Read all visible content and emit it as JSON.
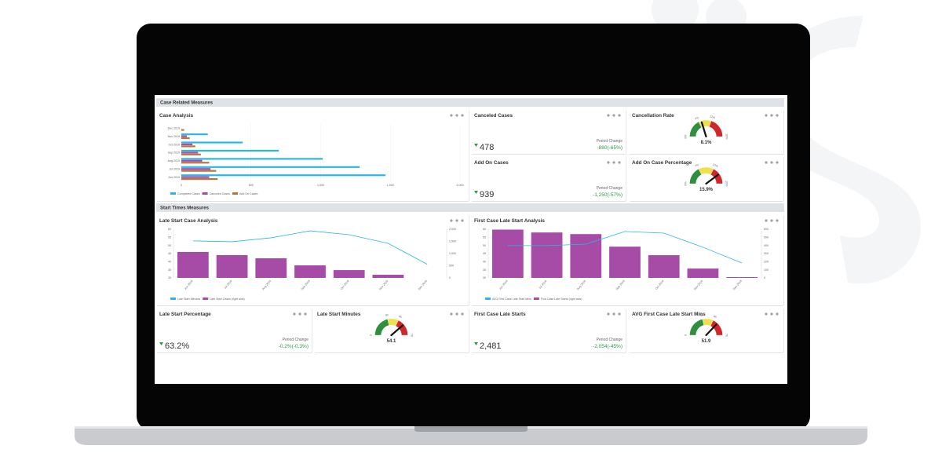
{
  "sections": [
    "Case Related Measures",
    "Start Times Measures"
  ],
  "chart_data": [
    {
      "type": "hbar",
      "title": "Case Analysis",
      "categories": [
        "Dec 2019",
        "Nov 2019",
        "Oct 2019",
        "Sep 2019",
        "Aug 2019",
        "Jul 2019",
        "Jun 2019"
      ],
      "series": [
        {
          "name": "Completed Cases",
          "color": "#29b6e8",
          "values": [
            0,
            190,
            440,
            700,
            1015,
            1280,
            1465
          ]
        },
        {
          "name": "Canceled Cases",
          "color": "#a64ca6",
          "values": [
            0,
            40,
            80,
            120,
            150,
            210,
            200
          ]
        },
        {
          "name": "Add On Cases",
          "color": "#b5763a",
          "values": [
            20,
            60,
            100,
            140,
            200,
            250,
            260
          ]
        }
      ],
      "xlim": [
        0,
        2000
      ],
      "xticks": [
        0,
        500,
        {
          "value": 1000,
          "label": "1,000"
        },
        {
          "value": 1500,
          "label": "1,500"
        },
        {
          "value": 2000,
          "label": "2,000"
        }
      ]
    },
    {
      "type": "combo",
      "title": "Late Start Case Analysis",
      "categories": [
        "Jun 2019",
        "Jul 2019",
        "Aug 2019",
        "Sep 2019",
        "Oct 2019",
        "Nov 2019",
        "Dec 2019"
      ],
      "series": [
        {
          "name": "Late Start Minutes",
          "kind": "line",
          "color": "#29b6e8",
          "values": [
            52.8,
            52.3,
            54.7,
            59,
            56.6,
            51.3,
            38.4
          ]
        },
        {
          "name": "Late Start Cases (right axis)",
          "kind": "bar",
          "axis": "y2",
          "color": "#a64ca6",
          "values": [
            1065,
            935,
            805,
            515,
            320,
            130,
            0
          ]
        }
      ],
      "ylim": [
        30,
        60
      ],
      "yticks": [
        30,
        35,
        40,
        45,
        50,
        55,
        60
      ],
      "y2lim": [
        0,
        2000
      ],
      "y2ticks": [
        0,
        500,
        {
          "value": 1000,
          "label": "1,000"
        },
        {
          "value": 1500,
          "label": "1,500"
        },
        {
          "value": 2000,
          "label": "2,000"
        }
      ]
    },
    {
      "type": "combo",
      "title": "First Case Late Start Analysis",
      "categories": [
        "Jun 2019",
        "Jul 2019",
        "Aug 2019",
        "Sep 2019",
        "Oct 2019",
        "Nov 2019",
        "Dec 2019"
      ],
      "series": [
        {
          "name": "AVG First Case Late Start Mins",
          "kind": "line",
          "color": "#29b6e8",
          "values": [
            49.9,
            49.9,
            50.8,
            58.6,
            57.6,
            48.9,
            39.2
          ]
        },
        {
          "name": "First Case Late Starts (right axis)",
          "kind": "bar",
          "axis": "y2",
          "color": "#a64ca6",
          "values": [
            595,
            560,
            540,
            385,
            280,
            115,
            10
          ]
        }
      ],
      "ylim": [
        30,
        60
      ],
      "yticks": [
        30,
        35,
        40,
        45,
        50,
        55,
        60
      ],
      "y2lim": [
        0,
        600
      ],
      "y2ticks": [
        0,
        100,
        200,
        300,
        400,
        500,
        600
      ]
    },
    {
      "type": "gauge",
      "title": "Cancellation Rate",
      "value": 8.1,
      "value_label": "8.1%",
      "ylim": [
        0,
        20
      ],
      "yticks": [
        {
          "value": 0,
          "label": "0%"
        },
        {
          "value": 7,
          "label": "7%"
        },
        {
          "value": 12,
          "label": "12%"
        },
        {
          "value": 20,
          "label": "20%"
        }
      ],
      "colors": [
        "#2f8f3f",
        "#f1df4b",
        "#d0272b"
      ]
    },
    {
      "type": "gauge",
      "title": "Add On Case Percentage",
      "value": 15.9,
      "value_label": "15.9%",
      "ylim": [
        0,
        20
      ],
      "yticks": [
        {
          "value": 0,
          "label": "0%"
        },
        {
          "value": 7,
          "label": "7%"
        },
        {
          "value": 13,
          "label": "13%"
        },
        {
          "value": 20,
          "label": "20%"
        }
      ],
      "colors": [
        "#2f8f3f",
        "#f1df4b",
        "#d0272b"
      ]
    },
    {
      "type": "gauge",
      "title": "Late Start Minutes",
      "value": 54.1,
      "ylim": [
        0,
        70
      ],
      "yticks": [
        0,
        30,
        45,
        70
      ],
      "colors": [
        "#2f8f3f",
        "#f1df4b",
        "#d0272b"
      ]
    },
    {
      "type": "gauge",
      "title": "AVG First Case Late Start Mins",
      "value": 51.9,
      "ylim": [
        0,
        70
      ],
      "yticks": [
        0,
        30,
        45,
        70
      ],
      "colors": [
        "#2f8f3f",
        "#f1df4b",
        "#d0272b"
      ]
    }
  ],
  "kpis": [
    {
      "title": "Canceled Cases",
      "value": 478,
      "change_label": "Period Change",
      "change": "-880(-65%)"
    },
    {
      "title": "Add On Cases",
      "value": 939,
      "change_label": "Period Change",
      "change": "-1,250(-57%)"
    },
    {
      "title": "Late Start Percentage",
      "value": 63.2,
      "value_label": "63.2%",
      "change_label": "Period Change",
      "change": "-0.2%(-0.3%)"
    },
    {
      "title": "First Case Late Starts",
      "value": 2481,
      "value_label": "2,481",
      "change_label": "Period Change",
      "change": "-2,054(-45%)"
    }
  ]
}
